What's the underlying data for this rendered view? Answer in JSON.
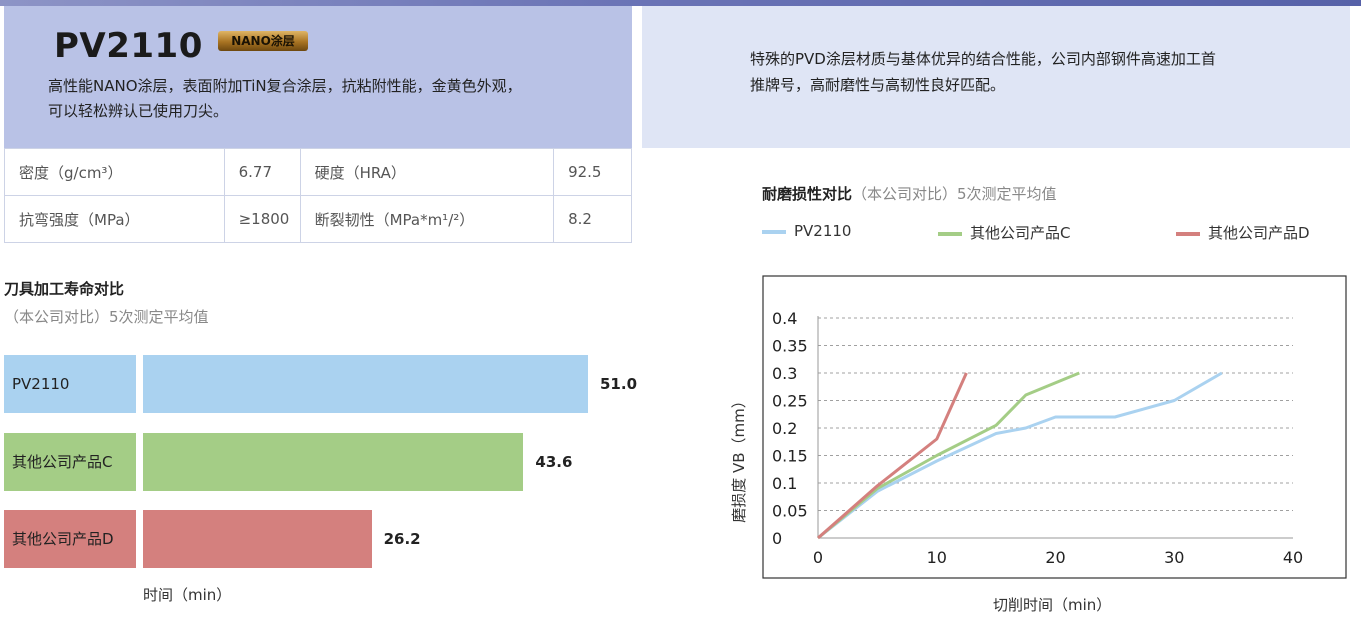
{
  "header": {
    "product_name": "PV2110",
    "badge": "NANO涂层",
    "desc_line1": "高性能NANO涂层，表面附加TiN复合涂层，抗粘附性能，金黄色外观，",
    "desc_line2": "可以轻松辨认已使用刀尖。",
    "right_line1": "特殊的PVD涂层材质与基体优异的结合性能，公司内部钢件高速加工首",
    "right_line2": "推牌号，高耐磨性与高韧性良好匹配。"
  },
  "specs": [
    {
      "label1": "密度（g/cm³）",
      "value1": "6.77",
      "label2": "硬度（HRA）",
      "value2": "92.5"
    },
    {
      "label1": "抗弯强度（MPa）",
      "value1": "≥1800",
      "label2": "断裂韧性（MPa*m¹/²）",
      "value2": "8.2"
    }
  ],
  "colors": {
    "pv2110": "#aad2f0",
    "product_c": "#a4cd86",
    "product_d": "#d4807e"
  },
  "chart_data": [
    {
      "type": "bar",
      "orientation": "horizontal",
      "title": "刀具加工寿命对比",
      "subtitle": "（本公司对比）5次测定平均值",
      "xlabel": "时间（min）",
      "categories": [
        "PV2110",
        "其他公司产品C",
        "其他公司产品D"
      ],
      "values": [
        51.0,
        43.6,
        26.2
      ],
      "value_labels": [
        "51.0",
        "43.6",
        "26.2"
      ],
      "xlim": [
        0,
        51.0
      ]
    },
    {
      "type": "line",
      "title": "耐磨损性对比",
      "subtitle": "（本公司对比）5次测定平均值",
      "xlabel": "切削时间（min）",
      "ylabel": "磨损度 VB（mm）",
      "xlim": [
        0,
        40
      ],
      "ylim": [
        0,
        0.4
      ],
      "xticks": [
        "0",
        "10",
        "20",
        "30",
        "40"
      ],
      "yticks": [
        "0",
        "0.05",
        "0.1",
        "0.15",
        "0.2",
        "0.25",
        "0.3",
        "0.35",
        "0.4"
      ],
      "grid": true,
      "legend": "top",
      "series": [
        {
          "name": "PV2110",
          "x": [
            0,
            5,
            10,
            15,
            17.5,
            20,
            25,
            30,
            34
          ],
          "y": [
            0,
            0.085,
            0.14,
            0.19,
            0.2,
            0.22,
            0.22,
            0.25,
            0.3
          ]
        },
        {
          "name": "其他公司产品C",
          "x": [
            0,
            5,
            10,
            15,
            17.5,
            22
          ],
          "y": [
            0,
            0.09,
            0.15,
            0.205,
            0.26,
            0.3
          ]
        },
        {
          "name": "其他公司产品D",
          "x": [
            0,
            5,
            10,
            12.5
          ],
          "y": [
            0,
            0.095,
            0.18,
            0.3
          ]
        }
      ]
    }
  ]
}
